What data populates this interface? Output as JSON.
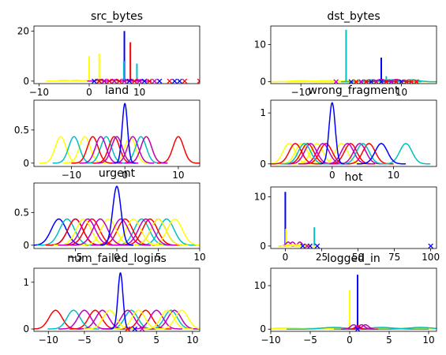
{
  "chart_data": [
    {
      "type": "line",
      "title": "src_bytes",
      "xlim": [
        -11,
        22
      ],
      "ylim": [
        -1,
        22
      ],
      "xticks": [
        -10,
        0,
        10
      ],
      "yticks": [
        0,
        20
      ],
      "grid": false,
      "series": [
        {
          "color": "#ffff00",
          "kind": "gauss",
          "centers": [
            -5.0,
            -2.5,
            0.0,
            2.5,
            5.0,
            7.5
          ],
          "sigma": 0.9,
          "amplitude": 0.4
        },
        {
          "color": "#ffff00",
          "kind": "spike",
          "points": [
            [
              0.0,
              10.0
            ],
            [
              2.0,
              11.0
            ]
          ]
        },
        {
          "color": "#0000ff",
          "kind": "spike",
          "points": [
            [
              7.0,
              20.0
            ]
          ]
        },
        {
          "color": "#ff0000",
          "kind": "spike",
          "points": [
            [
              8.2,
              15.5
            ]
          ]
        },
        {
          "color": "#00c0c0",
          "kind": "spike",
          "points": [
            [
              6.9,
              8.0
            ],
            [
              9.5,
              7.0
            ]
          ]
        },
        {
          "color": "#c000c0",
          "kind": "gauss",
          "centers": [
            2.0,
            5.0,
            8.0,
            10.0
          ],
          "sigma": 0.6,
          "amplitude": 0.5
        }
      ],
      "markers": [
        {
          "color": "#0000ff",
          "x": [
            1,
            2,
            3,
            5,
            8,
            11,
            14,
            17,
            18
          ]
        },
        {
          "color": "#ff0000",
          "x": [
            2,
            4,
            6,
            9,
            12,
            16,
            19,
            22
          ]
        },
        {
          "color": "#c000c0",
          "x": [
            3,
            5,
            7,
            10,
            13
          ]
        }
      ]
    },
    {
      "type": "line",
      "title": "dst_bytes",
      "xlim": [
        -16,
        17
      ],
      "ylim": [
        -0.5,
        15
      ],
      "xticks": [
        -10,
        10
      ],
      "yticks": [
        0,
        10
      ],
      "grid": false,
      "series": [
        {
          "color": "#ffff00",
          "kind": "gauss",
          "centers": [
            -10.0,
            -5.0,
            0.0,
            5.0,
            10.0
          ],
          "sigma": 2.0,
          "amplitude": 0.3
        },
        {
          "color": "#ffff00",
          "kind": "spike",
          "points": [
            [
              -1.0,
              11.5
            ]
          ]
        },
        {
          "color": "#00c0c0",
          "kind": "spike",
          "points": [
            [
              -1.0,
              14.0
            ],
            [
              7.0,
              1.5
            ]
          ]
        },
        {
          "color": "#0000ff",
          "kind": "spike",
          "points": [
            [
              6.0,
              6.5
            ]
          ]
        },
        {
          "color": "#00c0c0",
          "kind": "gauss",
          "centers": [
            4.0,
            8.0,
            12.0
          ],
          "sigma": 1.5,
          "amplitude": 0.5
        },
        {
          "color": "#c000c0",
          "kind": "gauss",
          "centers": [
            6.0,
            9.0
          ],
          "sigma": 0.8,
          "amplitude": 0.6
        }
      ],
      "markers": [
        {
          "color": "#0000ff",
          "x": [
            0,
            2,
            4,
            6,
            8,
            10
          ]
        },
        {
          "color": "#ff0000",
          "x": [
            1,
            3,
            5,
            7,
            9,
            11,
            12,
            13
          ]
        },
        {
          "color": "#c000c0",
          "x": [
            -3,
            2,
            5,
            8
          ]
        }
      ]
    },
    {
      "type": "line",
      "title": "land",
      "xlim": [
        -17,
        14
      ],
      "ylim": [
        -0.05,
        0.95
      ],
      "xticks": [
        -10,
        0,
        10
      ],
      "yticks": [
        0.0,
        0.5
      ],
      "grid": false,
      "series": [
        {
          "color": "#ffff00",
          "kind": "gauss",
          "centers": [
            -12.0,
            -7.5,
            1.0,
            4.0
          ],
          "sigma": 1.0,
          "amplitude": 0.4
        },
        {
          "color": "#00c0c0",
          "kind": "gauss",
          "centers": [
            -9.5,
            -3.5,
            3.0
          ],
          "sigma": 1.0,
          "amplitude": 0.4
        },
        {
          "color": "#ff0000",
          "kind": "gauss",
          "centers": [
            -6.0,
            -2.0,
            10.0
          ],
          "sigma": 1.0,
          "amplitude": 0.4
        },
        {
          "color": "#c000c0",
          "kind": "gauss",
          "centers": [
            -4.5,
            -1.5,
            1.5,
            4.0
          ],
          "sigma": 1.0,
          "amplitude": 0.4
        },
        {
          "color": "#0000ff",
          "kind": "gauss",
          "centers": [
            0.0
          ],
          "sigma": 0.5,
          "amplitude": 0.9
        }
      ],
      "markers": []
    },
    {
      "type": "line",
      "title": "wrong_fragment",
      "xlim": [
        -10,
        17
      ],
      "ylim": [
        -0.05,
        1.25
      ],
      "xticks": [
        0,
        10
      ],
      "yticks": [
        0,
        1
      ],
      "grid": false,
      "series": [
        {
          "color": "#ffff00",
          "kind": "gauss",
          "centers": [
            -7.0,
            -5.0,
            -2.5,
            1.5,
            4.5
          ],
          "sigma": 1.0,
          "amplitude": 0.4
        },
        {
          "color": "#ff0000",
          "kind": "gauss",
          "centers": [
            -6.0,
            -4.0,
            -1.0,
            3.0,
            6.0
          ],
          "sigma": 1.0,
          "amplitude": 0.4
        },
        {
          "color": "#c000c0",
          "kind": "gauss",
          "centers": [
            -3.5,
            -1.5,
            2.5,
            4.5
          ],
          "sigma": 1.0,
          "amplitude": 0.4
        },
        {
          "color": "#00c0c0",
          "kind": "gauss",
          "centers": [
            -4.5,
            5.0,
            12.0
          ],
          "sigma": 1.0,
          "amplitude": 0.4
        },
        {
          "color": "#0000ff",
          "kind": "gauss",
          "centers": [
            8.0
          ],
          "sigma": 1.0,
          "amplitude": 0.4
        },
        {
          "color": "#0000ff",
          "kind": "gauss",
          "centers": [
            0.0
          ],
          "sigma": 0.5,
          "amplitude": 1.2
        }
      ],
      "markers": []
    },
    {
      "type": "line",
      "title": "urgent",
      "xlim": [
        -10,
        10
      ],
      "ylim": [
        -0.05,
        0.95
      ],
      "xticks": [
        -5,
        0,
        5,
        10
      ],
      "yticks": [
        0.0,
        0.5
      ],
      "grid": false,
      "series": [
        {
          "color": "#0000ff",
          "kind": "gauss",
          "centers": [
            -7.0,
            -5.0,
            5.0
          ],
          "sigma": 0.9,
          "amplitude": 0.4
        },
        {
          "color": "#00c0c0",
          "kind": "gauss",
          "centers": [
            -6.0,
            3.0,
            6.0
          ],
          "sigma": 0.9,
          "amplitude": 0.4
        },
        {
          "color": "#ff0000",
          "kind": "gauss",
          "centers": [
            -5.0,
            -3.0,
            1.0,
            4.0
          ],
          "sigma": 0.9,
          "amplitude": 0.4
        },
        {
          "color": "#ffff00",
          "kind": "gauss",
          "centers": [
            -4.0,
            -1.0,
            2.0,
            5.0,
            7.0
          ],
          "sigma": 0.9,
          "amplitude": 0.4
        },
        {
          "color": "#c000c0",
          "kind": "gauss",
          "centers": [
            -3.5,
            -2.0,
            0.5,
            3.5
          ],
          "sigma": 0.9,
          "amplitude": 0.4
        },
        {
          "color": "#0000ff",
          "kind": "gauss",
          "centers": [
            0.0
          ],
          "sigma": 0.5,
          "amplitude": 0.9
        }
      ],
      "markers": []
    },
    {
      "type": "line",
      "title": "hot",
      "xlim": [
        -10,
        104
      ],
      "ylim": [
        -0.5,
        12
      ],
      "xticks": [
        0,
        25,
        50,
        75,
        100
      ],
      "yticks": [
        0,
        10
      ],
      "grid": false,
      "series": [
        {
          "color": "#0000ff",
          "kind": "spike",
          "points": [
            [
              0.0,
              11.0
            ]
          ]
        },
        {
          "color": "#ffff00",
          "kind": "spike",
          "points": [
            [
              0.5,
              3.5
            ]
          ]
        },
        {
          "color": "#00c0c0",
          "kind": "spike",
          "points": [
            [
              20.0,
              3.8
            ]
          ]
        },
        {
          "color": "#c000c0",
          "kind": "gauss",
          "centers": [
            2.0,
            5.0,
            10.0
          ],
          "sigma": 1.5,
          "amplitude": 0.8
        },
        {
          "color": "#ffff00",
          "kind": "gauss",
          "centers": [
            3.0,
            8.0,
            14.0
          ],
          "sigma": 2.0,
          "amplitude": 0.3
        }
      ],
      "markers": [
        {
          "color": "#0000ff",
          "x": [
            12,
            17,
            22,
            100
          ]
        },
        {
          "color": "#c000c0",
          "x": [
            15
          ]
        }
      ]
    },
    {
      "type": "line",
      "title": "num_failed_logins",
      "xlim": [
        -12,
        11
      ],
      "ylim": [
        -0.05,
        1.3
      ],
      "xticks": [
        -10,
        -5,
        0,
        5,
        10
      ],
      "yticks": [
        0,
        1
      ],
      "grid": false,
      "series": [
        {
          "color": "#ff0000",
          "kind": "gauss",
          "centers": [
            -9.0,
            -3.5,
            3.5
          ],
          "sigma": 0.9,
          "amplitude": 0.4
        },
        {
          "color": "#00c0c0",
          "kind": "gauss",
          "centers": [
            -6.5,
            1.5,
            7.0
          ],
          "sigma": 0.9,
          "amplitude": 0.4
        },
        {
          "color": "#c000c0",
          "kind": "gauss",
          "centers": [
            -5.0,
            -2.5,
            1.0,
            5.0,
            7.5
          ],
          "sigma": 0.9,
          "amplitude": 0.4
        },
        {
          "color": "#ffff00",
          "kind": "gauss",
          "centers": [
            -1.5,
            2.5,
            6.5,
            8.5
          ],
          "sigma": 0.9,
          "amplitude": 0.4
        },
        {
          "color": "#0000ff",
          "kind": "gauss",
          "centers": [
            0.0
          ],
          "sigma": 0.35,
          "amplitude": 1.2
        }
      ],
      "markers": [
        {
          "color": "#0000ff",
          "x": [
            2
          ]
        },
        {
          "color": "#ff0000",
          "x": [
            1
          ]
        },
        {
          "color": "#c000c0",
          "x": [
            3
          ]
        }
      ]
    },
    {
      "type": "line",
      "title": "logged_in",
      "xlim": [
        -10,
        11
      ],
      "ylim": [
        -0.5,
        14
      ],
      "xticks": [
        -10,
        -5,
        0,
        5,
        10
      ],
      "yticks": [
        0,
        10
      ],
      "grid": false,
      "series": [
        {
          "color": "#ffff00",
          "kind": "gauss",
          "centers": [
            -8.0,
            -4.0,
            3.0,
            7.0
          ],
          "sigma": 2.0,
          "amplitude": 0.3
        },
        {
          "color": "#ffff00",
          "kind": "spike",
          "points": [
            [
              0.0,
              9.0
            ]
          ]
        },
        {
          "color": "#0000ff",
          "kind": "spike",
          "points": [
            [
              1.0,
              12.5
            ]
          ]
        },
        {
          "color": "#00c0c0",
          "kind": "gauss",
          "centers": [
            -2.0,
            4.0,
            9.0
          ],
          "sigma": 1.5,
          "amplitude": 0.4
        },
        {
          "color": "#c000c0",
          "kind": "gauss",
          "centers": [
            0.5,
            1.5,
            2.0
          ],
          "sigma": 0.4,
          "amplitude": 1.0
        },
        {
          "color": "#ff0000",
          "kind": "gauss",
          "centers": [
            1.0
          ],
          "sigma": 0.3,
          "amplitude": 0.8
        }
      ],
      "markers": [
        {
          "color": "#0000ff",
          "x": [
            1
          ]
        }
      ]
    }
  ]
}
